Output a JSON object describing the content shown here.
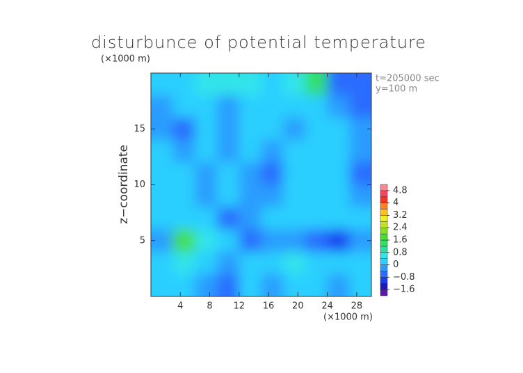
{
  "chart_data": {
    "type": "contour",
    "title": "disturbunce of potential temperature",
    "x_unit": "(×1000 m)",
    "y_unit": "(×1000 m)",
    "y_label": "z−coordinate",
    "annotations": [
      "t=205000 sec",
      "y=100 m"
    ],
    "xlim": [
      0,
      30
    ],
    "ylim": [
      0,
      20
    ],
    "xticks": [
      4,
      8,
      12,
      16,
      20,
      24,
      28
    ],
    "yticks": [
      5,
      10,
      15
    ],
    "x": [
      1.5,
      4.5,
      7.5,
      10.5,
      13.5,
      16.5,
      19.5,
      22.5,
      25.5,
      28.5
    ],
    "y": [
      19,
      17,
      15,
      13,
      11,
      9,
      7,
      5,
      3,
      1
    ],
    "values": [
      [
        0.2,
        0.3,
        0.4,
        0.4,
        0.4,
        0.3,
        0.4,
        1.5,
        -0.8,
        -0.8
      ],
      [
        -0.4,
        0.2,
        0.2,
        -0.4,
        0.3,
        0.2,
        0,
        0,
        -0.4,
        -0.8
      ],
      [
        -0.4,
        -0.8,
        0,
        -0.4,
        0,
        0.2,
        -0.4,
        0,
        0,
        -0.4
      ],
      [
        0,
        -0.4,
        0,
        -0.4,
        0,
        -0.4,
        0,
        0,
        0,
        -0.4
      ],
      [
        0,
        0,
        -0.4,
        0,
        -0.4,
        -0.8,
        0,
        0,
        0,
        -0.8
      ],
      [
        0,
        0,
        -0.4,
        0,
        -0.4,
        -0.4,
        0,
        0,
        0,
        -0.4
      ],
      [
        0,
        0,
        0,
        -0.8,
        -0.4,
        0,
        0.2,
        0,
        0,
        0
      ],
      [
        -0.4,
        1.6,
        0.4,
        0,
        -0.8,
        -0.4,
        -0.4,
        -0.8,
        -1.2,
        -0.4
      ],
      [
        0,
        0.4,
        0,
        -0.4,
        0,
        0,
        0.4,
        0,
        0,
        0
      ],
      [
        0,
        0,
        -0.4,
        -0.8,
        0,
        -0.4,
        0,
        0,
        -0.4,
        0.2
      ]
    ],
    "colorbar": {
      "lim": [
        -2,
        5.2
      ],
      "ticks": [
        {
          "value": -1.6,
          "label": "−1.6"
        },
        {
          "value": -0.8,
          "label": "−0.8"
        },
        0,
        0.8,
        1.6,
        2.4,
        3.2,
        4,
        4.8
      ],
      "colors": [
        "#5a18a8",
        "#1a1ab8",
        "#1a3cf0",
        "#2a6cff",
        "#2c9cff",
        "#2ccfff",
        "#30e4ea",
        "#30dca0",
        "#30e060",
        "#44e030",
        "#84e020",
        "#c4e420",
        "#f0f020",
        "#ffc020",
        "#ff8020",
        "#ff3020",
        "#ff4060",
        "#ff8890"
      ]
    }
  }
}
